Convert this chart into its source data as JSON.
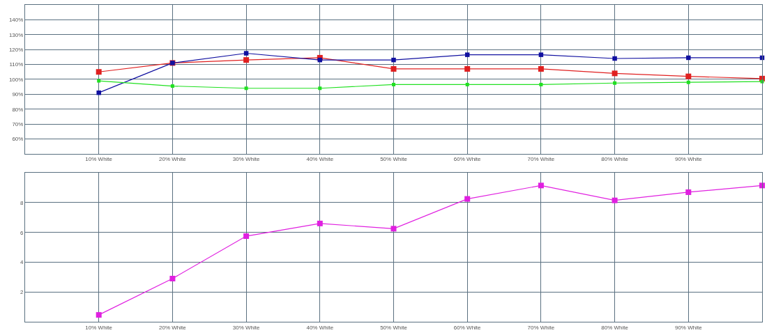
{
  "chart_data": [
    {
      "type": "line",
      "x": [
        10,
        20,
        30,
        40,
        50,
        60,
        70,
        80,
        90,
        100
      ],
      "xlim": [
        0,
        100
      ],
      "xticks": [
        {
          "value": 10,
          "label": "10% White"
        },
        {
          "value": 20,
          "label": "20% White"
        },
        {
          "value": 30,
          "label": "30% White"
        },
        {
          "value": 40,
          "label": "40% White"
        },
        {
          "value": 50,
          "label": "50% White"
        },
        {
          "value": 60,
          "label": "60% White"
        },
        {
          "value": 70,
          "label": "70% White"
        },
        {
          "value": 80,
          "label": "80% White"
        },
        {
          "value": 90,
          "label": "90% White"
        }
      ],
      "ylim": [
        50,
        150
      ],
      "yticks": [
        {
          "value": 60,
          "label": "60%"
        },
        {
          "value": 70,
          "label": "70%"
        },
        {
          "value": 80,
          "label": "80%"
        },
        {
          "value": 90,
          "label": "90%"
        },
        {
          "value": 100,
          "label": "100%"
        },
        {
          "value": 110,
          "label": "110%"
        },
        {
          "value": 120,
          "label": "120%"
        },
        {
          "value": 130,
          "label": "130%"
        },
        {
          "value": 140,
          "label": "140%"
        }
      ],
      "series": [
        {
          "color": "#e02020",
          "values": [
            105,
            111,
            113,
            114.5,
            107,
            107,
            107,
            104,
            102,
            100.5
          ]
        },
        {
          "color": "#1010a0",
          "values": [
            91,
            111,
            117.5,
            113,
            113,
            116.5,
            116.5,
            114,
            114.5,
            114.5
          ]
        },
        {
          "color": "#20e020",
          "values": [
            99,
            95.5,
            94,
            94,
            96.5,
            96.5,
            96.5,
            97.5,
            98,
            98.5
          ]
        }
      ],
      "grid": true,
      "marker": "square",
      "line_style": "solid"
    },
    {
      "type": "line",
      "x": [
        10,
        20,
        30,
        40,
        50,
        60,
        70,
        80,
        90,
        100
      ],
      "xlim": [
        0,
        100
      ],
      "xticks": [
        {
          "value": 10,
          "label": "10% White"
        },
        {
          "value": 20,
          "label": "20% White"
        },
        {
          "value": 30,
          "label": "30% White"
        },
        {
          "value": 40,
          "label": "40% White"
        },
        {
          "value": 50,
          "label": "50% White"
        },
        {
          "value": 60,
          "label": "60% White"
        },
        {
          "value": 70,
          "label": "70% White"
        },
        {
          "value": 80,
          "label": "80% White"
        },
        {
          "value": 90,
          "label": "90% White"
        }
      ],
      "ylim": [
        0,
        10
      ],
      "yticks": [
        2,
        4,
        6,
        8
      ],
      "series": [
        {
          "color": "#e020e0",
          "values": [
            0.46,
            2.9,
            5.75,
            6.6,
            6.25,
            8.25,
            9.15,
            8.15,
            8.7,
            9.15
          ]
        }
      ],
      "grid": true,
      "marker": "square",
      "line_style": "solid"
    }
  ]
}
